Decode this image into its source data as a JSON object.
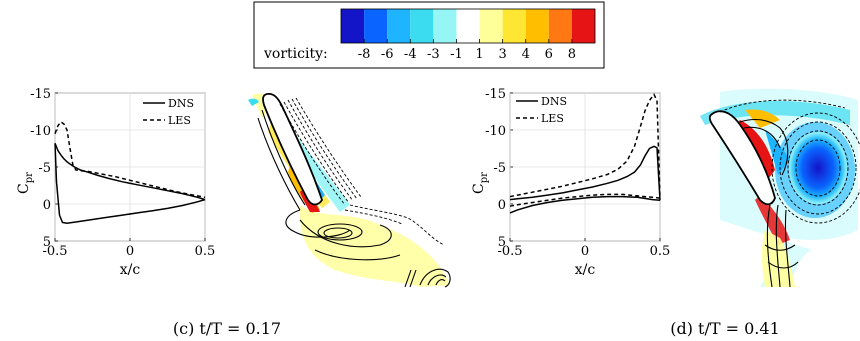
{
  "colorbar": {
    "label": "vorticity:",
    "tick_labels": [
      "-8",
      "-6",
      "-4",
      "-3",
      "-1",
      "1",
      "3",
      "4",
      "6",
      "8"
    ],
    "colors": [
      "#1414c8",
      "#0a64ff",
      "#1eb4ff",
      "#3cdcf0",
      "#96f5f5",
      "#ffffff",
      "#ffff9a",
      "#ffe632",
      "#ffbe00",
      "#ff7814",
      "#e61414"
    ]
  },
  "chart_data": [
    {
      "type": "line",
      "xlabel": "x/c",
      "ylabel": "C",
      "ylabel_sub": "pr",
      "xlim": [
        -0.5,
        0.5
      ],
      "ylim": [
        -15,
        5
      ],
      "y_reversed": true,
      "xticks": [
        -0.5,
        0,
        0.5
      ],
      "yticks": [
        -15,
        -10,
        -5,
        0,
        5
      ],
      "grid": true,
      "legend_position": "top-right",
      "caption": "(c) t/T = 0.17",
      "series": [
        {
          "name": "DNS",
          "style": "solid",
          "x": [
            -0.5,
            -0.48,
            -0.46,
            -0.44,
            -0.42,
            -0.4,
            -0.37,
            -0.33,
            -0.28,
            -0.22,
            -0.15,
            -0.05,
            0.05,
            0.15,
            0.25,
            0.35,
            0.45,
            0.5
          ],
          "y": [
            -8.2,
            -7.2,
            -6.6,
            -6.1,
            -5.7,
            -5.4,
            -5.0,
            -4.6,
            -4.3,
            -3.9,
            -3.5,
            -3.0,
            -2.6,
            -2.2,
            -1.8,
            -1.4,
            -0.9,
            -0.6
          ]
        },
        {
          "name": "DNS",
          "style": "solid",
          "x": [
            -0.5,
            -0.49,
            -0.47,
            -0.45,
            -0.42,
            -0.35,
            -0.25,
            -0.15,
            -0.05,
            0.05,
            0.15,
            0.25,
            0.35,
            0.45,
            0.5
          ],
          "y": [
            -8.2,
            -3.0,
            1.5,
            2.5,
            2.6,
            2.4,
            2.1,
            1.8,
            1.5,
            1.2,
            0.9,
            0.6,
            0.2,
            -0.3,
            -0.6
          ]
        },
        {
          "name": "LES",
          "style": "dashed",
          "x": [
            -0.5,
            -0.48,
            -0.46,
            -0.44,
            -0.42,
            -0.4,
            -0.38,
            -0.36,
            -0.33,
            -0.28,
            -0.2,
            -0.1,
            0.0,
            0.1,
            0.2,
            0.3,
            0.4,
            0.5
          ],
          "y": [
            -9.5,
            -10.6,
            -11.1,
            -10.8,
            -10.0,
            -7.5,
            -5.2,
            -4.6,
            -4.5,
            -4.4,
            -4.1,
            -3.7,
            -3.2,
            -2.7,
            -2.2,
            -1.7,
            -1.3,
            -0.9
          ]
        }
      ]
    },
    {
      "type": "line",
      "xlabel": "x/c",
      "ylabel": "C",
      "ylabel_sub": "pr",
      "xlim": [
        -0.5,
        0.5
      ],
      "ylim": [
        -15,
        5
      ],
      "y_reversed": true,
      "xticks": [
        -0.5,
        0,
        0.5
      ],
      "yticks": [
        -15,
        -10,
        -5,
        0,
        5
      ],
      "grid": true,
      "legend_position": "top-left",
      "caption": "(d) t/T = 0.41",
      "series": [
        {
          "name": "DNS",
          "style": "solid",
          "x": [
            -0.5,
            -0.45,
            -0.35,
            -0.25,
            -0.15,
            -0.05,
            0.05,
            0.15,
            0.22,
            0.28,
            0.33,
            0.37,
            0.4,
            0.43,
            0.46,
            0.48,
            0.5
          ],
          "y": [
            -0.6,
            -0.7,
            -0.9,
            -1.2,
            -1.5,
            -1.9,
            -2.3,
            -2.8,
            -3.2,
            -3.7,
            -4.3,
            -5.3,
            -6.5,
            -7.5,
            -7.8,
            -7.6,
            -0.5
          ]
        },
        {
          "name": "DNS",
          "style": "solid",
          "x": [
            -0.5,
            -0.45,
            -0.35,
            -0.25,
            -0.15,
            -0.05,
            0.05,
            0.15,
            0.25,
            0.35,
            0.45,
            0.5
          ],
          "y": [
            1.2,
            0.8,
            0.2,
            -0.2,
            -0.5,
            -0.7,
            -0.9,
            -1.0,
            -1.0,
            -0.9,
            -0.6,
            -0.5
          ]
        },
        {
          "name": "LES",
          "style": "dashed",
          "x": [
            -0.5,
            -0.45,
            -0.35,
            -0.25,
            -0.15,
            -0.05,
            0.05,
            0.15,
            0.22,
            0.28,
            0.33,
            0.37,
            0.4,
            0.43,
            0.46,
            0.48,
            0.5
          ],
          "y": [
            -1.0,
            -1.2,
            -1.6,
            -2.0,
            -2.4,
            -2.9,
            -3.4,
            -4.0,
            -4.7,
            -5.8,
            -7.8,
            -10.5,
            -12.6,
            -14.0,
            -14.8,
            -14.0,
            -0.8
          ]
        },
        {
          "name": "LES",
          "style": "dashed",
          "x": [
            -0.5,
            -0.45,
            -0.35,
            -0.25,
            -0.15,
            -0.05,
            0.05,
            0.15,
            0.25,
            0.35,
            0.45,
            0.5
          ],
          "y": [
            0.3,
            0.1,
            -0.2,
            -0.5,
            -0.8,
            -1.0,
            -1.2,
            -1.3,
            -1.3,
            -1.1,
            -0.9,
            -0.8
          ]
        }
      ]
    }
  ]
}
